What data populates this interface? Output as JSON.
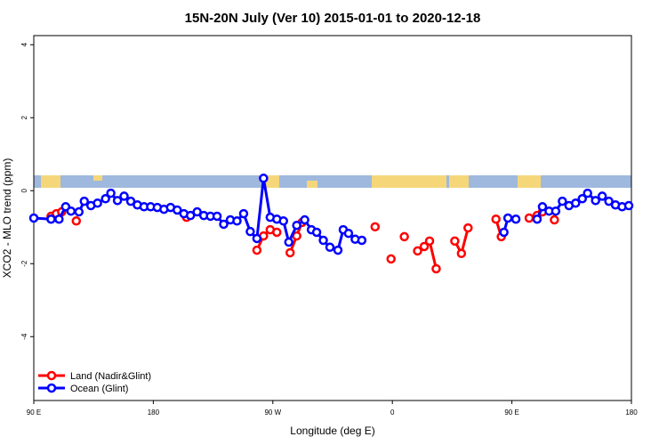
{
  "chart_data": {
    "type": "line",
    "title": "15N-20N July (Ver 10)   2015-01-01 to 2020-12-18",
    "x_label": "Longitude (deg E)",
    "y_label": "XCO2 - MLO trend (ppm)",
    "xlim": [
      90,
      540
    ],
    "ylim": [
      -5.75,
      4.25
    ],
    "xticks": [
      {
        "value": 90,
        "label": "90 E"
      },
      {
        "value": 180,
        "label": "180"
      },
      {
        "value": 270,
        "label": "90 W"
      },
      {
        "value": 360,
        "label": "0"
      },
      {
        "value": 450,
        "label": "90 E"
      },
      {
        "value": 540,
        "label": "180"
      }
    ],
    "yticks": [
      -4,
      -2,
      0,
      2,
      4
    ],
    "legend": "bottom-left",
    "series": [
      {
        "name": "Land (Nadir&Glint)",
        "color": "#ff0000",
        "x": [
          103,
          107,
          111,
          null,
          122,
          null,
          205,
          null,
          258,
          263,
          268,
          273,
          null,
          283,
          288,
          292,
          null,
          347,
          null,
          359,
          null,
          369,
          null,
          379,
          384,
          388,
          393,
          null,
          407,
          412,
          417,
          null,
          438,
          442,
          null,
          463,
          469,
          473,
          null,
          482
        ],
        "values": [
          -0.7,
          -0.63,
          -0.58,
          null,
          -0.83,
          null,
          -0.73,
          null,
          -1.63,
          -1.24,
          -1.07,
          -1.14,
          null,
          -1.7,
          -1.24,
          -0.87,
          null,
          -0.99,
          null,
          -1.87,
          null,
          -1.26,
          null,
          -1.65,
          -1.53,
          -1.38,
          -2.14,
          null,
          -1.38,
          -1.72,
          -1.02,
          null,
          -0.78,
          -1.26,
          null,
          -0.75,
          -0.68,
          -0.58,
          null,
          -0.8
        ]
      },
      {
        "name": "Ocean (Glint)",
        "color": "#0000ff",
        "x": [
          90,
          103,
          109,
          114,
          118,
          124,
          128,
          133,
          138,
          144,
          148,
          153,
          158,
          163,
          168,
          173,
          178,
          183,
          188,
          193,
          198,
          203,
          208,
          213,
          218,
          223,
          228,
          233,
          238,
          243,
          248,
          253,
          258,
          263,
          268,
          273,
          278,
          282,
          288,
          294,
          299,
          303,
          308,
          313,
          319,
          323,
          327,
          332,
          337,
          null,
          444,
          447,
          453,
          null,
          469,
          473,
          478,
          483,
          488,
          493,
          498,
          503,
          507,
          513,
          518,
          523,
          528,
          533,
          538
        ],
        "values": [
          -0.75,
          -0.78,
          -0.78,
          -0.44,
          -0.56,
          -0.58,
          -0.29,
          -0.41,
          -0.34,
          -0.22,
          -0.07,
          -0.27,
          -0.15,
          -0.29,
          -0.39,
          -0.44,
          -0.44,
          -0.46,
          -0.51,
          -0.46,
          -0.53,
          -0.63,
          -0.68,
          -0.58,
          -0.68,
          -0.7,
          -0.7,
          -0.92,
          -0.8,
          -0.83,
          -0.63,
          -1.12,
          -1.31,
          0.34,
          -0.73,
          -0.78,
          -0.83,
          -1.41,
          -0.95,
          -0.8,
          -1.07,
          -1.14,
          -1.36,
          -1.55,
          -1.63,
          -1.07,
          -1.17,
          -1.33,
          -1.36,
          null,
          -1.14,
          -0.75,
          -0.78,
          null,
          -0.78,
          -0.44,
          -0.56,
          -0.56,
          -0.29,
          -0.41,
          -0.34,
          -0.22,
          -0.07,
          -0.27,
          -0.15,
          -0.29,
          -0.39,
          -0.44,
          -0.41
        ]
      }
    ]
  }
}
